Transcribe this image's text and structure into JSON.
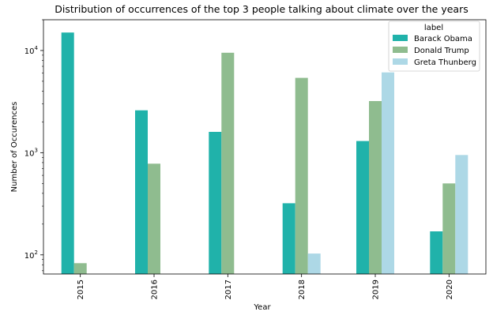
{
  "chart_data": {
    "type": "bar",
    "title": "Distribution of occurrences of the top 3 people talking about climate over the years",
    "xlabel": "Year",
    "ylabel": "Number of Occurences",
    "yscale": "log",
    "ylim": [
      65,
      20000
    ],
    "yticks": [
      {
        "value": 100,
        "base": "10",
        "exp": "2"
      },
      {
        "value": 1000,
        "base": "10",
        "exp": "3"
      },
      {
        "value": 10000,
        "base": "10",
        "exp": "4"
      }
    ],
    "categories": [
      "2015",
      "2016",
      "2017",
      "2018",
      "2019",
      "2020"
    ],
    "series": [
      {
        "name": "Barack Obama",
        "color": "#20b2aa",
        "values": [
          15000,
          2600,
          1600,
          320,
          1300,
          170
        ]
      },
      {
        "name": "Donald Trump",
        "color": "#8fbc8f",
        "values": [
          83,
          780,
          9500,
          5400,
          3200,
          500
        ]
      },
      {
        "name": "Greta Thunberg",
        "color": "#add8e6",
        "values": [
          null,
          null,
          null,
          103,
          6100,
          950
        ]
      }
    ],
    "legend": {
      "title": "label",
      "placement": "top-right"
    },
    "grid": false
  }
}
